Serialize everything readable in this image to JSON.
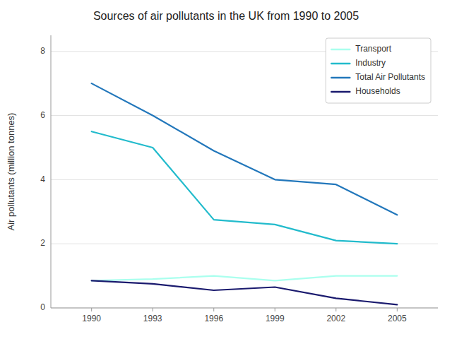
{
  "chart_data": {
    "type": "line",
    "title": "Sources of air pollutants in the UK from 1990 to 2005",
    "ylabel": "Air pollutants (million tonnes)",
    "x": [
      1990,
      1993,
      1996,
      1999,
      2002,
      2005
    ],
    "series": [
      {
        "name": "Transport",
        "color": "#aaffee",
        "values": [
          0.85,
          0.9,
          1.0,
          0.85,
          1.0,
          1.0
        ]
      },
      {
        "name": "Industry",
        "color": "#22bbcc",
        "values": [
          5.5,
          5.0,
          2.75,
          2.6,
          2.1,
          2.0
        ]
      },
      {
        "name": "Total Air Pollutants",
        "color": "#2277bb",
        "values": [
          7.0,
          6.0,
          4.9,
          4.0,
          3.85,
          2.9
        ]
      },
      {
        "name": "Households",
        "color": "#1a1a6e",
        "values": [
          0.85,
          0.75,
          0.55,
          0.65,
          0.3,
          0.1
        ]
      }
    ],
    "xlim": [
      1988,
      2007
    ],
    "xticks": [
      1990,
      1993,
      1996,
      1999,
      2002,
      2005
    ],
    "ylim": [
      0,
      8.5
    ],
    "yticks": [
      0,
      2,
      4,
      6,
      8
    ],
    "grid": true,
    "legend": "upper right"
  }
}
